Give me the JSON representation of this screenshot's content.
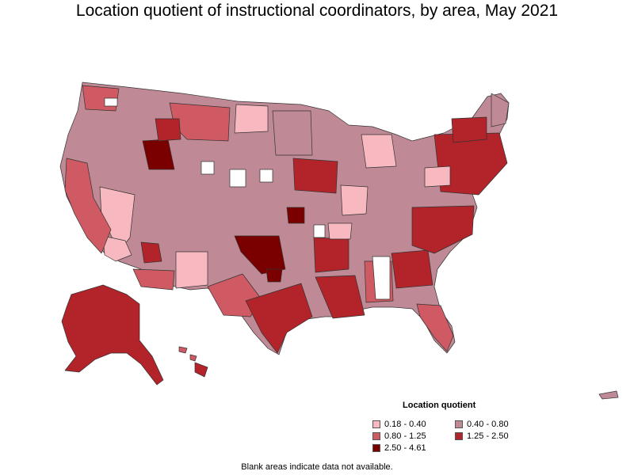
{
  "title": "Location quotient of instructional coordinators, by area, May 2021",
  "legend": {
    "title": "Location quotient",
    "items": [
      {
        "label": "0.18 - 0.40",
        "color": "#f7b8c0"
      },
      {
        "label": "0.40 - 0.80",
        "color": "#bf8a95"
      },
      {
        "label": "0.80 - 1.25",
        "color": "#cf5a63"
      },
      {
        "label": "1.25 - 2.50",
        "color": "#b2232a"
      },
      {
        "label": "2.50 - 4.61",
        "color": "#7a0000"
      }
    ]
  },
  "footnote": "Blank areas indicate data not available."
}
